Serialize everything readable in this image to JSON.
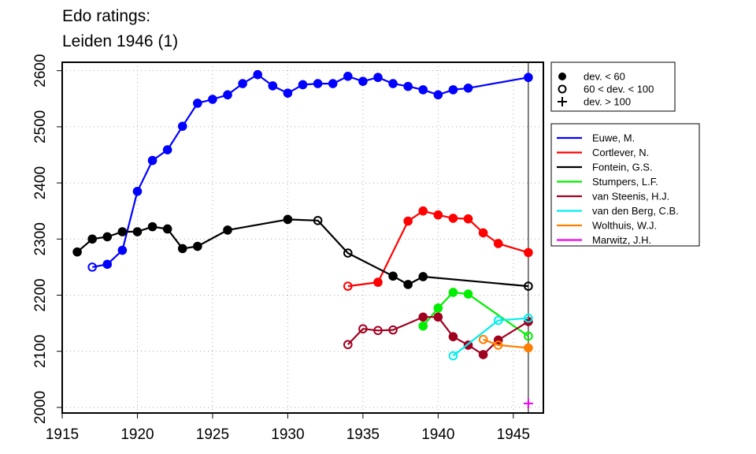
{
  "chart_data": {
    "type": "line",
    "title_lines": [
      "Edo ratings:",
      "Leiden 1946 (1)"
    ],
    "xlabel": "",
    "ylabel": "",
    "xlim": [
      1915,
      1947
    ],
    "ylim": [
      1990,
      2615
    ],
    "x_ticks": [
      1915,
      1920,
      1925,
      1930,
      1935,
      1940,
      1945
    ],
    "y_ticks": [
      2000,
      2100,
      2200,
      2300,
      2400,
      2500,
      2600
    ],
    "grid": true,
    "vertical_marker_x": 1946,
    "marker_legend": [
      {
        "label": "dev. < 60",
        "marker": "filled"
      },
      {
        "label": "60 < dev. < 100",
        "marker": "open"
      },
      {
        "label": "dev. > 100",
        "marker": "plus"
      }
    ],
    "series": [
      {
        "name": "Euwe, M.",
        "color": "#0000ff",
        "points": [
          [
            1917,
            2250,
            "open"
          ],
          [
            1918,
            2255,
            "filled"
          ],
          [
            1919,
            2280,
            "filled"
          ],
          [
            1920,
            2385,
            "filled"
          ],
          [
            1921,
            2440,
            "filled"
          ],
          [
            1922,
            2459,
            "filled"
          ],
          [
            1923,
            2501,
            "filled"
          ],
          [
            1924,
            2542,
            "filled"
          ],
          [
            1925,
            2549,
            "filled"
          ],
          [
            1926,
            2557,
            "filled"
          ],
          [
            1927,
            2577,
            "filled"
          ],
          [
            1928,
            2593,
            "filled"
          ],
          [
            1929,
            2573,
            "filled"
          ],
          [
            1930,
            2560,
            "filled"
          ],
          [
            1931,
            2575,
            "filled"
          ],
          [
            1932,
            2577,
            "filled"
          ],
          [
            1933,
            2577,
            "filled"
          ],
          [
            1934,
            2590,
            "filled"
          ],
          [
            1935,
            2581,
            "filled"
          ],
          [
            1936,
            2588,
            "filled"
          ],
          [
            1937,
            2577,
            "filled"
          ],
          [
            1938,
            2572,
            "filled"
          ],
          [
            1939,
            2566,
            "filled"
          ],
          [
            1940,
            2557,
            "filled"
          ],
          [
            1941,
            2566,
            "filled"
          ],
          [
            1942,
            2569,
            "filled"
          ],
          [
            1946,
            2588,
            "filled"
          ]
        ]
      },
      {
        "name": "Cortlever, N.",
        "color": "#ff0000",
        "points": [
          [
            1934,
            2216,
            "open"
          ],
          [
            1936,
            2223,
            "filled"
          ],
          [
            1938,
            2332,
            "filled"
          ],
          [
            1939,
            2350,
            "filled"
          ],
          [
            1940,
            2343,
            "filled"
          ],
          [
            1941,
            2337,
            "filled"
          ],
          [
            1942,
            2336,
            "filled"
          ],
          [
            1943,
            2311,
            "filled"
          ],
          [
            1944,
            2292,
            "filled"
          ],
          [
            1946,
            2276,
            "filled"
          ]
        ]
      },
      {
        "name": "Fontein, G.S.",
        "color": "#000000",
        "points": [
          [
            1916,
            2277,
            "filled"
          ],
          [
            1917,
            2300,
            "filled"
          ],
          [
            1918,
            2304,
            "filled"
          ],
          [
            1919,
            2313,
            "filled"
          ],
          [
            1920,
            2313,
            "filled"
          ],
          [
            1921,
            2322,
            "filled"
          ],
          [
            1922,
            2318,
            "filled"
          ],
          [
            1923,
            2283,
            "filled"
          ],
          [
            1924,
            2287,
            "filled"
          ],
          [
            1926,
            2316,
            "filled"
          ],
          [
            1930,
            2335,
            "filled"
          ],
          [
            1932,
            2333,
            "open"
          ],
          [
            1934,
            2275,
            "open"
          ],
          [
            1937,
            2234,
            "filled"
          ],
          [
            1938,
            2219,
            "filled"
          ],
          [
            1939,
            2233,
            "filled"
          ],
          [
            1946,
            2216,
            "open"
          ]
        ]
      },
      {
        "name": "Stumpers, L.F.",
        "color": "#00ee00",
        "points": [
          [
            1939,
            2145,
            "filled"
          ],
          [
            1940,
            2177,
            "filled"
          ],
          [
            1941,
            2205,
            "filled"
          ],
          [
            1942,
            2202,
            "filled"
          ],
          [
            1946,
            2127,
            "open"
          ]
        ]
      },
      {
        "name": "van Steenis, H.J.",
        "color": "#a00020",
        "points": [
          [
            1934,
            2112,
            "open"
          ],
          [
            1935,
            2140,
            "open"
          ],
          [
            1936,
            2137,
            "open"
          ],
          [
            1937,
            2138,
            "open"
          ],
          [
            1939,
            2161,
            "filled"
          ],
          [
            1940,
            2161,
            "filled"
          ],
          [
            1941,
            2126,
            "filled"
          ],
          [
            1942,
            2111,
            "filled"
          ],
          [
            1943,
            2094,
            "filled"
          ],
          [
            1944,
            2120,
            "filled"
          ],
          [
            1946,
            2153,
            "filled"
          ]
        ]
      },
      {
        "name": "van den Berg, C.B.",
        "color": "#00eeee",
        "points": [
          [
            1941,
            2092,
            "open"
          ],
          [
            1944,
            2155,
            "open"
          ],
          [
            1946,
            2159,
            "open"
          ]
        ]
      },
      {
        "name": "Wolthuis, W.J.",
        "color": "#ff7f00",
        "points": [
          [
            1943,
            2121,
            "open"
          ],
          [
            1944,
            2111,
            "open"
          ],
          [
            1946,
            2106,
            "filled"
          ]
        ]
      },
      {
        "name": "Marwitz, J.H.",
        "color": "#ee00ee",
        "points": [
          [
            1946,
            2007,
            "plus"
          ]
        ]
      }
    ]
  }
}
